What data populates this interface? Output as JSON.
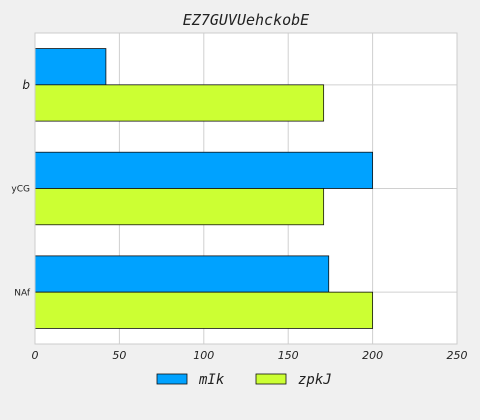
{
  "chart_data": {
    "type": "bar",
    "orientation": "horizontal",
    "title": "EZ7GUVUehckobE",
    "xlabel": "",
    "ylabel": "",
    "categories": [
      "b",
      "yCG",
      "NAf"
    ],
    "series": [
      {
        "name": "mIk",
        "values": [
          42,
          200,
          174
        ],
        "color": "#00a2ff"
      },
      {
        "name": "zpkJ",
        "values": [
          171,
          171,
          200
        ],
        "color": "#ccff33"
      }
    ],
    "xlim": [
      0,
      250
    ],
    "xticks": [
      0,
      50,
      100,
      150,
      200,
      250
    ],
    "grid": true,
    "legend_position": "bottom-center"
  }
}
